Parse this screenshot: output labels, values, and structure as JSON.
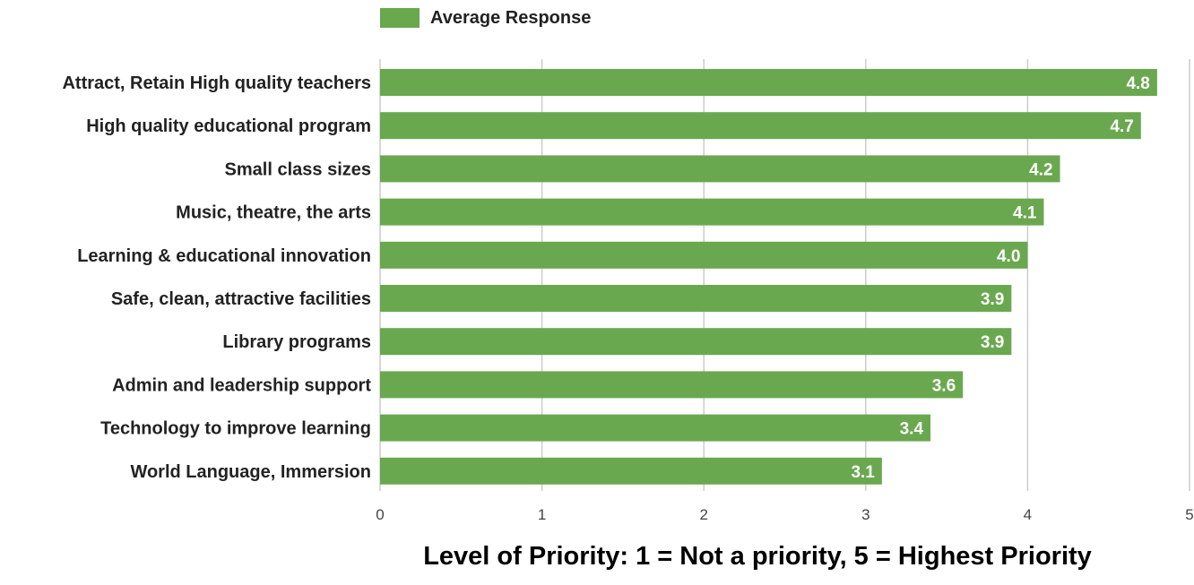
{
  "chart_data": {
    "type": "bar",
    "orientation": "horizontal",
    "categories": [
      "Attract, Retain High quality teachers",
      "High quality educational program",
      "Small class sizes",
      "Music, theatre, the arts",
      "Learning & educational innovation",
      "Safe, clean, attractive facilities",
      "Library programs",
      "Admin and leadership support",
      "Technology to improve learning",
      "World Language, Immersion"
    ],
    "series": [
      {
        "name": "Average Response",
        "values": [
          4.8,
          4.7,
          4.2,
          4.1,
          4.0,
          3.9,
          3.9,
          3.6,
          3.4,
          3.1
        ],
        "labels": [
          "4.8",
          "4.7",
          "4.2",
          "4.1",
          "4.0",
          "3.9",
          "3.9",
          "3.6",
          "3.4",
          "3.1"
        ],
        "color": "#6aa84f"
      }
    ],
    "xlabel": "Level of Priority: 1 = Not a priority, 5 = Highest Priority",
    "ylabel": "",
    "xlim": [
      0,
      5
    ],
    "xticks": [
      "0",
      "1",
      "2",
      "3",
      "4",
      "5"
    ],
    "grid": true,
    "legend_position": "top"
  }
}
